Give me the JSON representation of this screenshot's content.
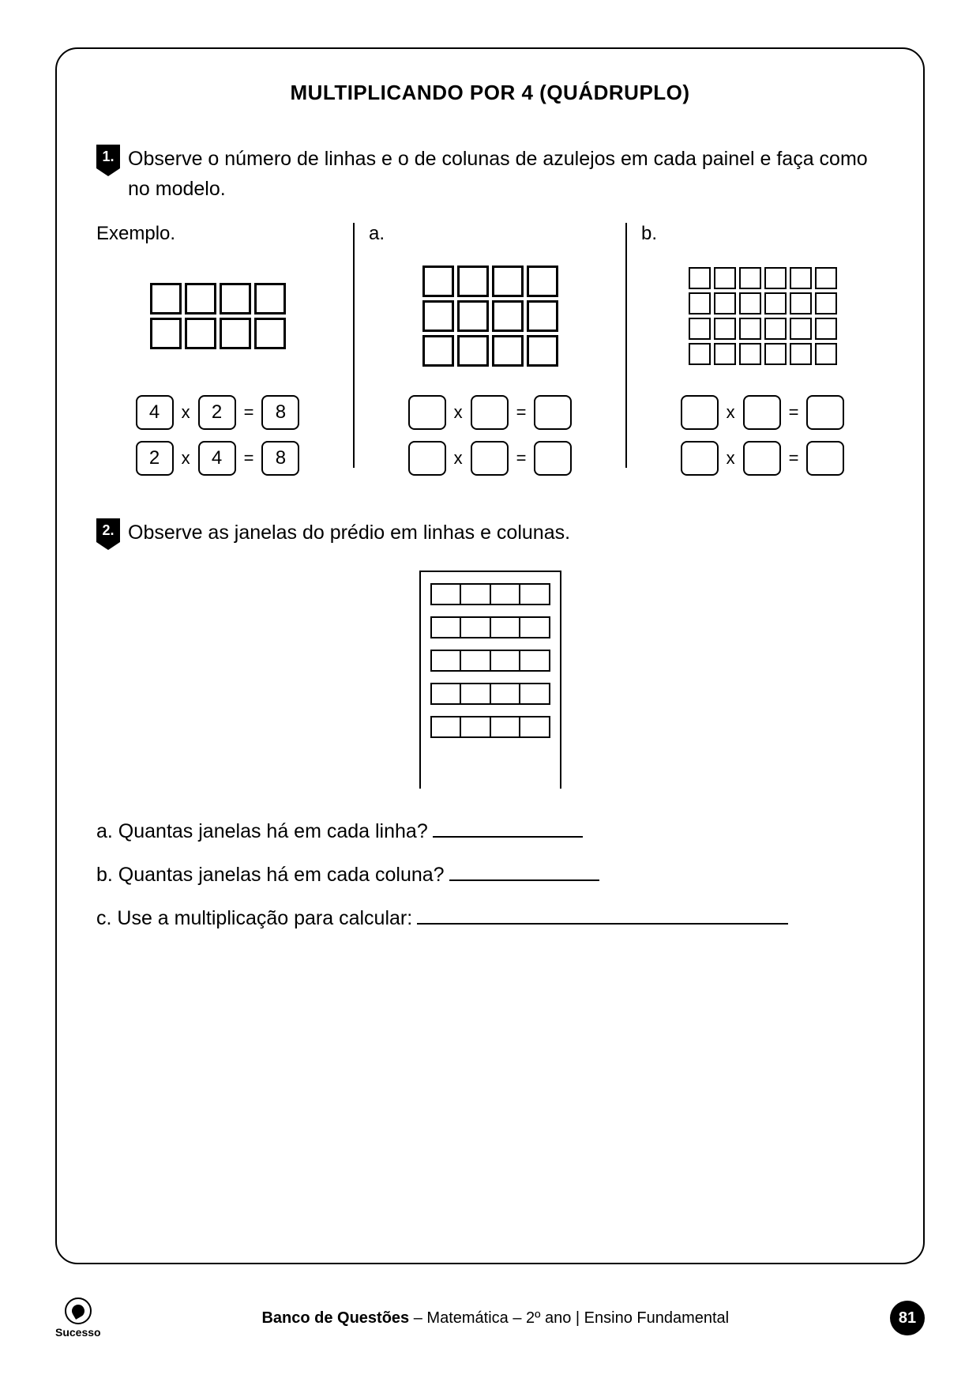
{
  "title": "MULTIPLICANDO POR 4 (QUÁDRUPLO)",
  "q1": {
    "number": "1.",
    "text": "Observe o número de linhas e o de colunas de azulejos em cada painel  e faça como no modelo.",
    "panels": [
      {
        "label": "Exemplo.",
        "grid": {
          "rows": 2,
          "cols": 4,
          "tile_size": 40,
          "border": 3
        },
        "eqs": [
          {
            "a": "4",
            "b": "2",
            "c": "8"
          },
          {
            "a": "2",
            "b": "4",
            "c": "8"
          }
        ]
      },
      {
        "label": "a.",
        "grid": {
          "rows": 3,
          "cols": 4,
          "tile_size": 40,
          "border": 3
        },
        "eqs": [
          {
            "a": "",
            "b": "",
            "c": ""
          },
          {
            "a": "",
            "b": "",
            "c": ""
          }
        ]
      },
      {
        "label": "b.",
        "grid": {
          "rows": 4,
          "cols": 6,
          "tile_size": 28,
          "border": 2
        },
        "eqs": [
          {
            "a": "",
            "b": "",
            "c": ""
          },
          {
            "a": "",
            "b": "",
            "c": ""
          }
        ]
      }
    ]
  },
  "q2": {
    "number": "2.",
    "text": "Observe as janelas do prédio em linhas e colunas.",
    "building": {
      "rows": 5,
      "cols": 4
    },
    "subs": [
      {
        "prefix": "a.",
        "text": "Quantas janelas há em cada linha?",
        "blank_width": 190
      },
      {
        "prefix": "b.",
        "text": "Quantas janelas há em cada coluna?",
        "blank_width": 190
      },
      {
        "prefix": "c.",
        "text": "Use a multiplicação para calcular:",
        "blank_width": 470
      }
    ]
  },
  "footer": {
    "logo": "Sucesso",
    "text_bold": "Banco de Questões",
    "text_rest": " – Matemática – 2º ano | Ensino Fundamental",
    "page": "81"
  },
  "style": {
    "eq_times": "x",
    "eq_equals": "="
  }
}
